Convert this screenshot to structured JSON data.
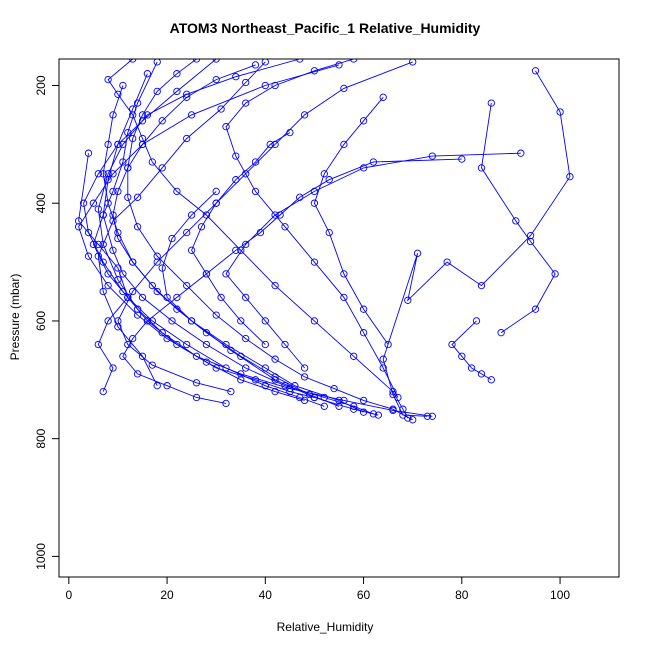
{
  "chart_data": {
    "type": "scatter",
    "title": "ATOM3 Northeast_Pacific_1 Relative_Humidity",
    "xlabel": "Relative_Humidity",
    "ylabel": "Pressure (mbar)",
    "xlim": [
      -2,
      112
    ],
    "ylim": [
      1035,
      155
    ],
    "y_reversed": true,
    "x_ticks": [
      0,
      20,
      40,
      60,
      80,
      100
    ],
    "y_ticks": [
      200,
      400,
      600,
      800,
      1000
    ],
    "grid": false,
    "legend": "none",
    "color": "#0000ff",
    "marker": "open-circle",
    "series": [
      {
        "x": [
          13,
          8,
          10,
          13,
          15,
          17,
          22,
          28,
          35,
          42,
          50,
          58,
          66,
          68,
          69
        ],
        "y": [
          155,
          190,
          215,
          250,
          290,
          330,
          380,
          420,
          480,
          540,
          600,
          660,
          720,
          750,
          765
        ]
      },
      {
        "x": [
          18,
          14,
          12,
          11,
          9,
          7,
          5,
          8,
          12,
          17,
          24,
          32,
          40,
          47,
          52
        ],
        "y": [
          160,
          230,
          280,
          330,
          380,
          420,
          470,
          520,
          560,
          600,
          640,
          680,
          710,
          730,
          745
        ]
      },
      {
        "x": [
          30,
          22,
          15,
          10,
          6,
          3,
          4,
          7,
          11,
          16,
          22,
          30,
          38,
          45,
          50
        ],
        "y": [
          155,
          210,
          260,
          300,
          350,
          400,
          450,
          500,
          550,
          600,
          640,
          680,
          700,
          720,
          730
        ]
      },
      {
        "x": [
          55,
          40,
          25,
          15,
          9,
          5,
          2,
          4,
          8,
          14,
          20,
          28,
          35,
          42,
          48
        ],
        "y": [
          165,
          200,
          250,
          300,
          350,
          400,
          440,
          490,
          540,
          590,
          630,
          670,
          700,
          720,
          735
        ]
      },
      {
        "x": [
          95,
          100,
          102,
          94,
          84,
          77,
          69,
          71,
          64,
          66,
          68,
          73
        ],
        "y": [
          175,
          245,
          355,
          455,
          540,
          500,
          565,
          485,
          665,
          725,
          760,
          762
        ]
      },
      {
        "x": [
          86,
          84,
          91,
          94,
          99,
          95,
          88
        ],
        "y": [
          230,
          340,
          430,
          465,
          520,
          580,
          620
        ]
      },
      {
        "x": [
          4,
          2,
          6,
          10,
          12,
          8,
          6,
          9,
          7
        ],
        "y": [
          315,
          430,
          470,
          510,
          560,
          600,
          640,
          680,
          720
        ]
      },
      {
        "x": [
          40,
          36,
          31,
          24,
          19,
          14,
          9,
          6,
          7,
          10,
          15,
          18
        ],
        "y": [
          160,
          195,
          240,
          290,
          340,
          390,
          430,
          490,
          550,
          610,
          660,
          710
        ]
      },
      {
        "x": [
          70,
          56,
          48,
          42,
          36,
          30,
          24,
          18,
          13,
          10,
          12,
          17,
          26,
          33
        ],
        "y": [
          160,
          205,
          250,
          300,
          350,
          400,
          450,
          500,
          550,
          600,
          640,
          675,
          705,
          720
        ]
      },
      {
        "x": [
          80,
          62,
          53,
          47,
          43,
          39,
          34,
          28,
          22,
          16,
          13,
          11,
          14,
          20,
          26,
          32
        ],
        "y": [
          325,
          330,
          360,
          390,
          420,
          450,
          480,
          520,
          560,
          600,
          630,
          660,
          690,
          710,
          730,
          740
        ]
      },
      {
        "x": [
          92,
          74,
          60,
          50,
          42,
          36,
          32,
          36,
          40,
          44,
          48
        ],
        "y": [
          315,
          320,
          340,
          380,
          420,
          470,
          520,
          560,
          600,
          640,
          680
        ]
      },
      {
        "x": [
          83,
          78,
          80,
          82,
          84,
          86
        ],
        "y": [
          600,
          640,
          660,
          680,
          690,
          700
        ]
      },
      {
        "x": [
          64,
          60,
          56,
          52,
          50,
          53,
          56,
          60,
          65
        ],
        "y": [
          220,
          260,
          300,
          350,
          400,
          450,
          520,
          580,
          640
        ]
      },
      {
        "x": [
          45,
          41,
          38,
          34,
          30,
          27,
          25,
          28,
          31,
          35,
          40
        ],
        "y": [
          280,
          300,
          330,
          360,
          400,
          440,
          480,
          520,
          560,
          600,
          640
        ]
      },
      {
        "x": [
          30,
          25,
          21,
          19,
          20,
          25,
          32,
          40,
          46,
          55,
          60
        ],
        "y": [
          380,
          420,
          460,
          510,
          560,
          600,
          640,
          680,
          710,
          735,
          755
        ]
      },
      {
        "x": [
          11,
          9,
          8,
          7,
          8,
          10,
          13,
          18,
          25,
          33,
          42,
          50,
          58,
          63
        ],
        "y": [
          200,
          250,
          300,
          350,
          400,
          450,
          500,
          550,
          600,
          650,
          700,
          730,
          750,
          760
        ]
      },
      {
        "x": [
          16,
          13,
          10,
          8,
          7,
          9,
          11,
          15,
          21,
          28,
          36,
          44,
          52,
          58,
          62
        ],
        "y": [
          180,
          240,
          300,
          360,
          420,
          480,
          520,
          560,
          600,
          640,
          680,
          710,
          730,
          745,
          758
        ]
      },
      {
        "x": [
          47,
          34,
          24,
          16,
          11,
          8,
          6,
          7,
          10,
          14,
          19,
          26,
          35,
          45,
          56,
          66,
          74
        ],
        "y": [
          155,
          185,
          215,
          250,
          300,
          350,
          410,
          470,
          530,
          580,
          620,
          660,
          690,
          715,
          735,
          752,
          762
        ]
      },
      {
        "x": [
          58,
          50,
          42,
          36,
          32,
          34,
          38,
          44,
          50,
          56,
          60,
          64,
          67
        ],
        "y": [
          155,
          175,
          200,
          230,
          270,
          320,
          380,
          440,
          500,
          560,
          620,
          680,
          730
        ]
      },
      {
        "x": [
          26,
          22,
          18,
          15,
          13,
          12,
          12,
          14,
          18,
          24,
          30,
          36,
          42,
          48,
          54,
          60,
          66,
          70
        ],
        "y": [
          155,
          180,
          210,
          250,
          290,
          340,
          390,
          440,
          490,
          540,
          590,
          630,
          665,
          695,
          715,
          735,
          750,
          768
        ]
      },
      {
        "x": [
          38,
          30,
          24,
          19,
          15,
          12,
          10,
          9,
          10,
          13,
          17,
          22,
          28,
          35,
          42,
          49,
          55
        ],
        "y": [
          165,
          190,
          220,
          260,
          300,
          340,
          380,
          420,
          460,
          500,
          540,
          580,
          620,
          660,
          695,
          725,
          745
        ]
      }
    ]
  }
}
